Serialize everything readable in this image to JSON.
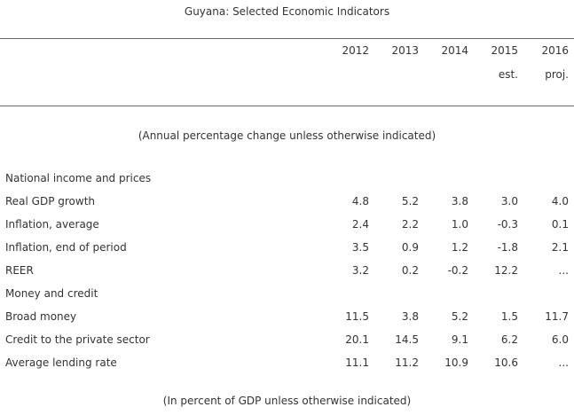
{
  "title": "Guyana: Selected Economic Indicators",
  "years": [
    "2012",
    "2013",
    "2014",
    "2015",
    "2016"
  ],
  "year_notes": [
    "",
    "",
    "",
    "est.",
    "proj."
  ],
  "section1_note": "(Annual percentage change unless otherwise indicated)",
  "rows": [
    {
      "label": "National income and prices",
      "values": [
        "",
        "",
        "",
        "",
        ""
      ]
    },
    {
      "label": "Real GDP growth",
      "values": [
        "4.8",
        "5.2",
        "3.8",
        "3.0",
        "4.0"
      ]
    },
    {
      "label": "Inflation, average",
      "values": [
        "2.4",
        "2.2",
        "1.0",
        "-0.3",
        "0.1"
      ]
    },
    {
      "label": "Inflation, end of period",
      "values": [
        "3.5",
        "0.9",
        "1.2",
        "-1.8",
        "2.1"
      ]
    },
    {
      "label": "REER",
      "values": [
        "3.2",
        "0.2",
        "-0.2",
        "12.2",
        "..."
      ]
    },
    {
      "label": "Money and credit",
      "values": [
        "",
        "",
        "",
        "",
        ""
      ]
    },
    {
      "label": "Broad money",
      "values": [
        "11.5",
        "3.8",
        "5.2",
        "1.5",
        "11.7"
      ]
    },
    {
      "label": "Credit to the private sector",
      "values": [
        "20.1",
        "14.5",
        "9.1",
        "6.2",
        "6.0"
      ]
    },
    {
      "label": "Average lending rate",
      "values": [
        "11.1",
        "11.2",
        "10.9",
        "10.6",
        "..."
      ]
    }
  ],
  "section2_note": "(In percent of GDP unless otherwise indicated)"
}
